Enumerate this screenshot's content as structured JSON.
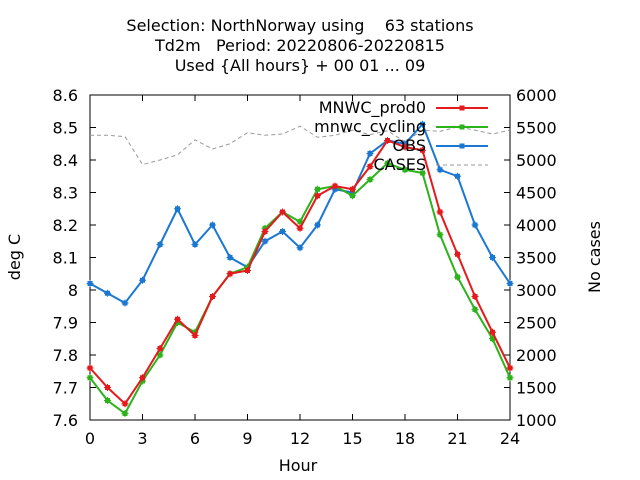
{
  "chart_data": {
    "type": "line",
    "title_lines": [
      "Selection: NorthNorway using    63 stations",
      "Td2m   Period: 20220806-20220815",
      "Used {All hours} + 00 01 ... 09"
    ],
    "xlabel": "Hour",
    "ylabel": "deg C",
    "y2label": "No cases",
    "xlim": [
      0,
      24
    ],
    "ylim": [
      7.6,
      8.6
    ],
    "y2lim": [
      1000,
      6000
    ],
    "xticks": [
      "0",
      "3",
      "6",
      "9",
      "12",
      "15",
      "18",
      "21",
      "24"
    ],
    "yticks": [
      "7.6",
      "7.7",
      "7.8",
      "7.9",
      "8",
      "8.1",
      "8.2",
      "8.3",
      "8.4",
      "8.5",
      "8.6"
    ],
    "y2ticks": [
      "1000",
      "1500",
      "2000",
      "2500",
      "3000",
      "3500",
      "4000",
      "4500",
      "5000",
      "5500",
      "6000"
    ],
    "legend_position": "top-right",
    "x": [
      0,
      1,
      2,
      3,
      4,
      5,
      6,
      7,
      8,
      9,
      10,
      11,
      12,
      13,
      14,
      15,
      16,
      17,
      18,
      19,
      20,
      21,
      22,
      23,
      24
    ],
    "series": [
      {
        "name": "MNWC_prod0",
        "color": "#e41a1c",
        "axis": "left",
        "values": [
          7.76,
          7.7,
          7.65,
          7.73,
          7.82,
          7.91,
          7.86,
          7.98,
          8.05,
          8.06,
          8.18,
          8.24,
          8.19,
          8.29,
          8.32,
          8.31,
          8.38,
          8.46,
          8.44,
          8.43,
          8.24,
          8.11,
          7.98,
          7.87,
          7.76
        ]
      },
      {
        "name": "mnwc_cycling",
        "color": "#2cb21b",
        "axis": "left",
        "values": [
          7.73,
          7.66,
          7.62,
          7.72,
          7.8,
          7.9,
          7.87,
          7.98,
          8.05,
          8.07,
          8.19,
          8.24,
          8.21,
          8.31,
          8.32,
          8.29,
          8.34,
          8.39,
          8.37,
          8.36,
          8.17,
          8.04,
          7.94,
          7.85,
          7.73
        ]
      },
      {
        "name": "OBS",
        "color": "#1a78d2",
        "axis": "left",
        "values": [
          8.02,
          7.99,
          7.96,
          8.03,
          8.14,
          8.25,
          8.14,
          8.2,
          8.1,
          8.07,
          8.15,
          8.18,
          8.13,
          8.2,
          8.31,
          8.3,
          8.42,
          8.46,
          8.45,
          8.51,
          8.37,
          8.35,
          8.2,
          8.1,
          8.02
        ]
      },
      {
        "name": "CASES",
        "color": "#999999",
        "axis": "right",
        "dashed": true,
        "values": [
          5380,
          5380,
          5360,
          4930,
          5000,
          5080,
          5310,
          5170,
          5250,
          5420,
          5380,
          5400,
          5520,
          5350,
          5380,
          5460,
          5390,
          5450,
          5280,
          5460,
          5440,
          5510,
          5460,
          5400,
          5460
        ]
      }
    ]
  }
}
